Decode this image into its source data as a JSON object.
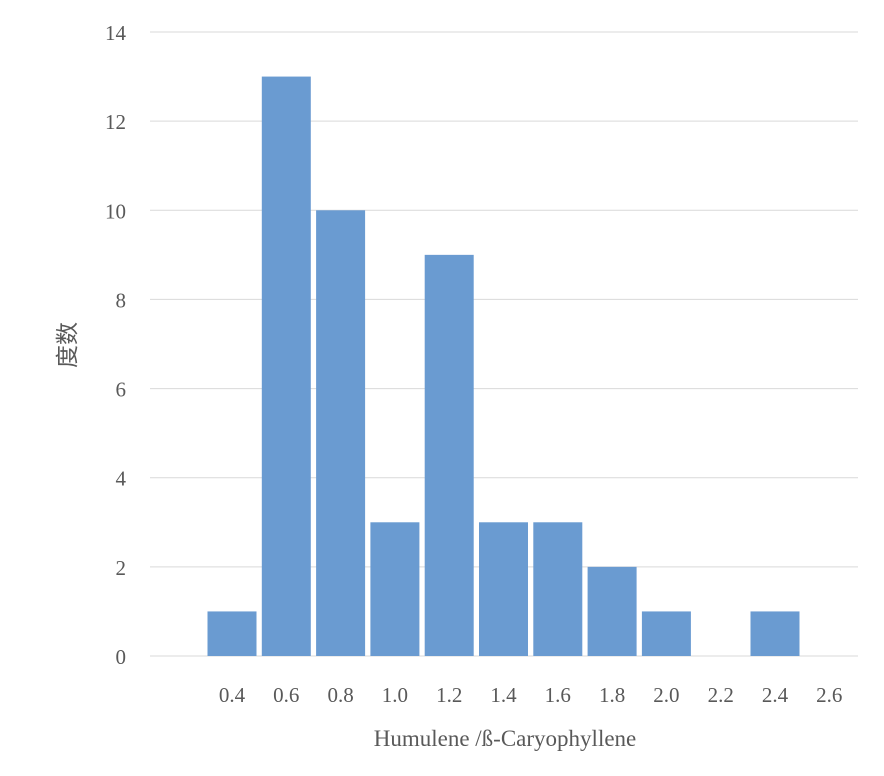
{
  "chart_data": {
    "type": "bar",
    "title": "",
    "xlabel": "Humulene /ß-Caryophyllene",
    "ylabel": "度数",
    "categories": [
      "0.4",
      "0.6",
      "0.8",
      "1.0",
      "1.2",
      "1.4",
      "1.6",
      "1.8",
      "2.0",
      "2.2",
      "2.4",
      "2.6"
    ],
    "values": [
      1,
      13,
      10,
      3,
      9,
      3,
      3,
      2,
      1,
      0,
      1,
      0
    ],
    "ylim": [
      0,
      14
    ],
    "yticks": [
      0,
      2,
      4,
      6,
      8,
      10,
      12,
      14
    ],
    "grid": true,
    "legend": "none",
    "colors": {
      "bar": "#6A9BD1",
      "grid": "#D9D9D9",
      "text": "#595959"
    }
  }
}
